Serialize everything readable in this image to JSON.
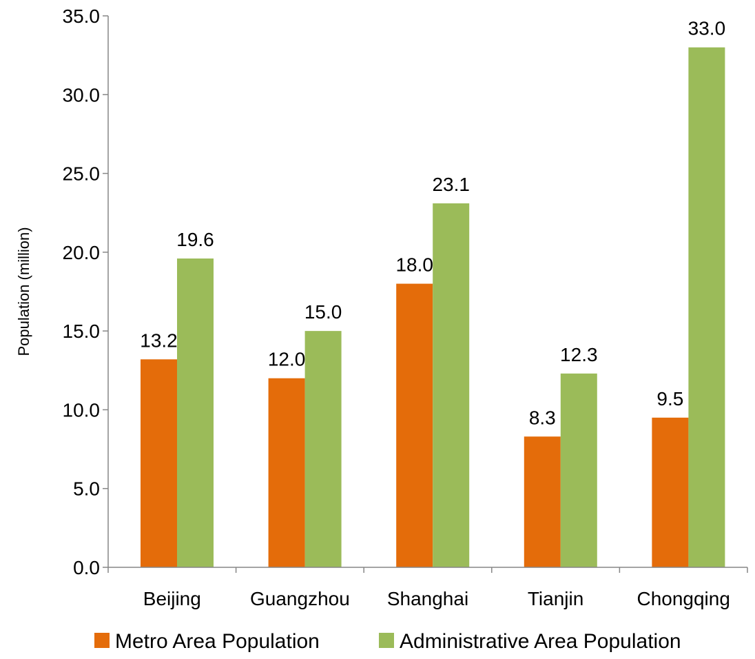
{
  "chart_data": {
    "type": "bar",
    "title": "",
    "xlabel": "",
    "ylabel": "Population (million)",
    "ylim": [
      0,
      35
    ],
    "y_ticks": [
      "0.0",
      "5.0",
      "10.0",
      "15.0",
      "20.0",
      "25.0",
      "30.0",
      "35.0"
    ],
    "grid": false,
    "legend_position": "bottom",
    "categories": [
      "Beijing",
      "Guangzhou",
      "Shanghai",
      "Tianjin",
      "Chongqing"
    ],
    "series": [
      {
        "name": "Metro Area Population",
        "color": "#E46C0A",
        "values": [
          13.2,
          12.0,
          18.0,
          8.3,
          9.5
        ],
        "labels": [
          "13.2",
          "12.0",
          "18.0",
          "8.3",
          "9.5"
        ]
      },
      {
        "name": "Administrative Area Population",
        "color": "#9BBB59",
        "values": [
          19.6,
          15.0,
          23.1,
          12.3,
          33.0
        ],
        "labels": [
          "19.6",
          "15.0",
          "23.1",
          "12.3",
          "33.0"
        ]
      }
    ]
  }
}
